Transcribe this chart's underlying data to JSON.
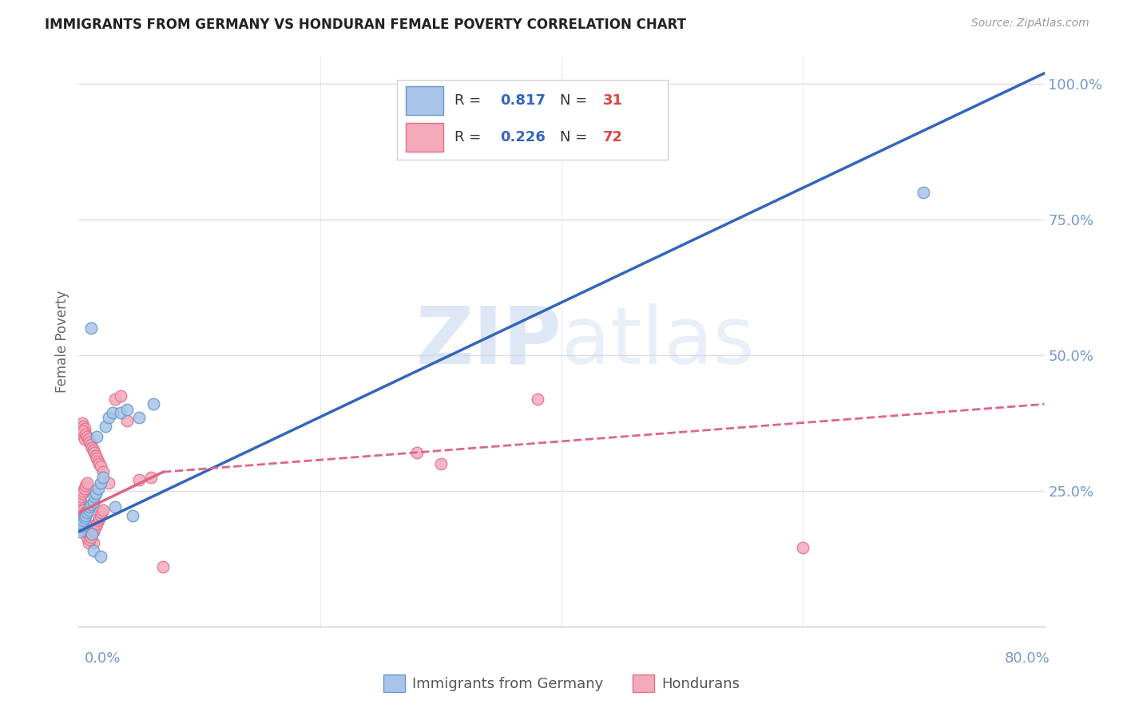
{
  "title": "IMMIGRANTS FROM GERMANY VS HONDURAN FEMALE POVERTY CORRELATION CHART",
  "source": "Source: ZipAtlas.com",
  "ylabel": "Female Poverty",
  "watermark_zip": "ZIP",
  "watermark_atlas": "atlas",
  "germany_color": "#a8c4e8",
  "germany_edge": "#6699cc",
  "honduran_color": "#f5aabc",
  "honduran_edge": "#e0708a",
  "germany_line_color": "#3366bb",
  "honduran_line_color": "#dd6688",
  "axis_label_color": "#7799cc",
  "grid_color": "#ddddee",
  "title_color": "#222222",
  "source_color": "#999999",
  "legend_r_color": "#3366bb",
  "legend_n_color": "#dd4444",
  "germany_R": "0.817",
  "germany_N": "31",
  "honduran_R": "0.226",
  "honduran_N": "72",
  "xlim": [
    0.0,
    0.8
  ],
  "ylim": [
    0.0,
    1.05
  ],
  "germany_scatter": [
    [
      0.001,
      0.175
    ],
    [
      0.002,
      0.185
    ],
    [
      0.003,
      0.19
    ],
    [
      0.004,
      0.195
    ],
    [
      0.005,
      0.2
    ],
    [
      0.006,
      0.205
    ],
    [
      0.007,
      0.21
    ],
    [
      0.008,
      0.215
    ],
    [
      0.009,
      0.22
    ],
    [
      0.01,
      0.225
    ],
    [
      0.011,
      0.17
    ],
    [
      0.012,
      0.23
    ],
    [
      0.013,
      0.24
    ],
    [
      0.014,
      0.245
    ],
    [
      0.015,
      0.35
    ],
    [
      0.016,
      0.255
    ],
    [
      0.018,
      0.265
    ],
    [
      0.02,
      0.275
    ],
    [
      0.022,
      0.37
    ],
    [
      0.025,
      0.385
    ],
    [
      0.028,
      0.395
    ],
    [
      0.03,
      0.22
    ],
    [
      0.035,
      0.395
    ],
    [
      0.04,
      0.4
    ],
    [
      0.045,
      0.205
    ],
    [
      0.05,
      0.385
    ],
    [
      0.01,
      0.55
    ],
    [
      0.012,
      0.14
    ],
    [
      0.018,
      0.13
    ],
    [
      0.062,
      0.41
    ],
    [
      0.7,
      0.8
    ]
  ],
  "honduran_scatter": [
    [
      0.001,
      0.195
    ],
    [
      0.002,
      0.2
    ],
    [
      0.003,
      0.195
    ],
    [
      0.004,
      0.185
    ],
    [
      0.005,
      0.175
    ],
    [
      0.006,
      0.19
    ],
    [
      0.007,
      0.18
    ],
    [
      0.008,
      0.185
    ],
    [
      0.001,
      0.215
    ],
    [
      0.002,
      0.22
    ],
    [
      0.003,
      0.225
    ],
    [
      0.004,
      0.215
    ],
    [
      0.005,
      0.21
    ],
    [
      0.006,
      0.205
    ],
    [
      0.007,
      0.165
    ],
    [
      0.008,
      0.17
    ],
    [
      0.009,
      0.175
    ],
    [
      0.01,
      0.18
    ],
    [
      0.011,
      0.185
    ],
    [
      0.012,
      0.155
    ],
    [
      0.001,
      0.235
    ],
    [
      0.002,
      0.24
    ],
    [
      0.003,
      0.245
    ],
    [
      0.004,
      0.25
    ],
    [
      0.005,
      0.255
    ],
    [
      0.006,
      0.26
    ],
    [
      0.007,
      0.265
    ],
    [
      0.008,
      0.155
    ],
    [
      0.009,
      0.16
    ],
    [
      0.01,
      0.165
    ],
    [
      0.011,
      0.17
    ],
    [
      0.012,
      0.175
    ],
    [
      0.013,
      0.18
    ],
    [
      0.014,
      0.185
    ],
    [
      0.015,
      0.19
    ],
    [
      0.016,
      0.195
    ],
    [
      0.017,
      0.2
    ],
    [
      0.018,
      0.205
    ],
    [
      0.019,
      0.21
    ],
    [
      0.02,
      0.215
    ],
    [
      0.002,
      0.36
    ],
    [
      0.003,
      0.375
    ],
    [
      0.004,
      0.37
    ],
    [
      0.005,
      0.365
    ],
    [
      0.003,
      0.355
    ],
    [
      0.004,
      0.36
    ],
    [
      0.005,
      0.345
    ],
    [
      0.006,
      0.355
    ],
    [
      0.007,
      0.35
    ],
    [
      0.008,
      0.345
    ],
    [
      0.009,
      0.34
    ],
    [
      0.01,
      0.335
    ],
    [
      0.011,
      0.33
    ],
    [
      0.012,
      0.325
    ],
    [
      0.013,
      0.32
    ],
    [
      0.014,
      0.315
    ],
    [
      0.015,
      0.31
    ],
    [
      0.016,
      0.305
    ],
    [
      0.017,
      0.3
    ],
    [
      0.018,
      0.295
    ],
    [
      0.02,
      0.285
    ],
    [
      0.025,
      0.265
    ],
    [
      0.03,
      0.42
    ],
    [
      0.035,
      0.425
    ],
    [
      0.04,
      0.38
    ],
    [
      0.05,
      0.27
    ],
    [
      0.06,
      0.275
    ],
    [
      0.07,
      0.11
    ],
    [
      0.6,
      0.145
    ],
    [
      0.38,
      0.42
    ],
    [
      0.3,
      0.3
    ],
    [
      0.28,
      0.32
    ]
  ],
  "germany_line": {
    "x0": 0.0,
    "y0": 0.175,
    "x1": 0.8,
    "y1": 1.02
  },
  "honduran_line_solid": {
    "x0": 0.0,
    "y0": 0.21,
    "x1": 0.07,
    "y1": 0.285
  },
  "honduran_line_dash": {
    "x0": 0.07,
    "y0": 0.285,
    "x1": 0.8,
    "y1": 0.41
  }
}
